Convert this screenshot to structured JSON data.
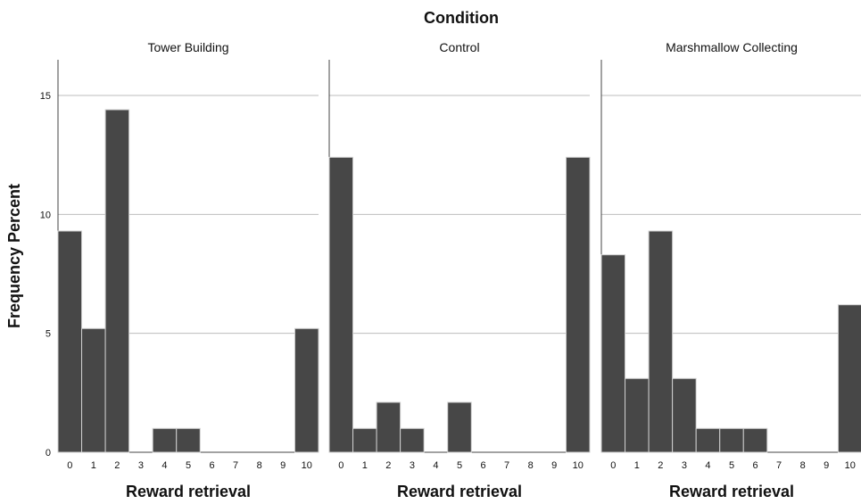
{
  "chart_data": {
    "type": "bar",
    "title": "Condition",
    "ylabel": "Frequency Percent",
    "xlabel": "Reward retrieval",
    "categories": [
      "0",
      "1",
      "2",
      "3",
      "4",
      "5",
      "6",
      "7",
      "8",
      "9",
      "10"
    ],
    "yticks": [
      0,
      5,
      10,
      15
    ],
    "ylim": [
      0,
      16.5
    ],
    "grid": true,
    "panels": [
      {
        "title": "Tower Building",
        "values": [
          9.3,
          5.2,
          14.4,
          0,
          1.0,
          1.0,
          0,
          0,
          0,
          0,
          5.2
        ]
      },
      {
        "title": "Control",
        "values": [
          12.4,
          1.0,
          2.1,
          1.0,
          0,
          2.1,
          0,
          0,
          0,
          0,
          12.4
        ]
      },
      {
        "title": "Marshmallow Collecting",
        "values": [
          8.3,
          3.1,
          9.3,
          3.1,
          1.0,
          1.0,
          1.0,
          0,
          0,
          0,
          6.2
        ]
      }
    ]
  }
}
